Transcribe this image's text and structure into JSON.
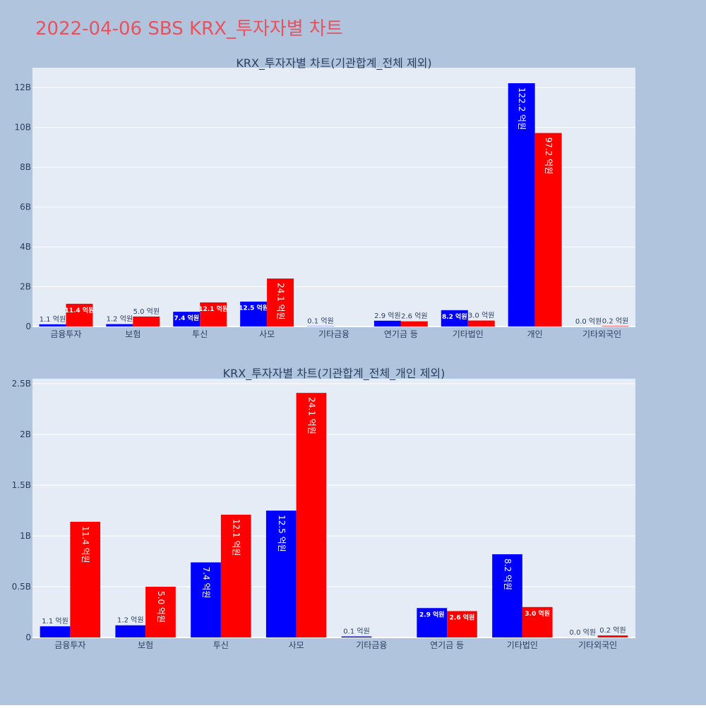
{
  "page_title": "2022-04-06 SBS KRX_투자자별 차트",
  "colors": {
    "background": "#b0c4de",
    "plot_bg": "#e5ecf6",
    "buy": "#0000ff",
    "sell": "#ff0000",
    "title": "#e8525f",
    "axis_text": "#2a3f5f"
  },
  "chart_data": [
    {
      "type": "bar",
      "title": "KRX_투자자별 차트(기관합계_전체 제외)",
      "categories": [
        "금융투자",
        "보험",
        "투신",
        "사모",
        "기타금융",
        "연기금 등",
        "기타법인",
        "개인",
        "기타외국인"
      ],
      "ylim": [
        0,
        13000000000
      ],
      "yticks": [
        0,
        2000000000,
        4000000000,
        6000000000,
        8000000000,
        10000000000,
        12000000000
      ],
      "ytick_labels": [
        "0",
        "2B",
        "4B",
        "6B",
        "8B",
        "10B",
        "12B"
      ],
      "series": [
        {
          "color": "#0000ff",
          "values": [
            110000000,
            120000000,
            740000000,
            1250000000,
            10000000,
            290000000,
            820000000,
            12220000000,
            0
          ],
          "labels": [
            "1.1 억원",
            "1.2 억원",
            "7.4 억원",
            "12.5 억원",
            "0.1 억원",
            "2.9 억원",
            "8.2 억원",
            "122.2 억원",
            "0.0 억원"
          ]
        },
        {
          "color": "#ff0000",
          "values": [
            1140000000,
            500000000,
            1210000000,
            2410000000,
            0,
            260000000,
            300000000,
            9720000000,
            20000000
          ],
          "labels": [
            "11.4 억원",
            "5.0 억원",
            "12.1 억원",
            "24.1 억원",
            "",
            "2.6 억원",
            "3.0 억원",
            "97.2 억원",
            "0.2 억원"
          ]
        }
      ]
    },
    {
      "type": "bar",
      "title": "KRX_투자자별 차트(기관합계_전체_개인 제외)",
      "categories": [
        "금융투자",
        "보험",
        "투신",
        "사모",
        "기타금융",
        "연기금 등",
        "기타법인",
        "기타외국인"
      ],
      "ylim": [
        0,
        2550000000
      ],
      "yticks": [
        0,
        500000000,
        1000000000,
        1500000000,
        2000000000,
        2500000000
      ],
      "ytick_labels": [
        "0",
        "0.5B",
        "1B",
        "1.5B",
        "2B",
        "2.5B"
      ],
      "series": [
        {
          "color": "#0000ff",
          "values": [
            110000000,
            120000000,
            740000000,
            1250000000,
            10000000,
            290000000,
            820000000,
            0
          ],
          "labels": [
            "1.1 억원",
            "1.2 억원",
            "7.4 억원",
            "12.5 억원",
            "0.1 억원",
            "2.9 억원",
            "8.2 억원",
            "0.0 억원"
          ]
        },
        {
          "color": "#ff0000",
          "values": [
            1140000000,
            500000000,
            1210000000,
            2410000000,
            0,
            260000000,
            300000000,
            20000000
          ],
          "labels": [
            "11.4 억원",
            "5.0 억원",
            "12.1 억원",
            "24.1 억원",
            "",
            "2.6 억원",
            "3.0 억원",
            "0.2 억원"
          ]
        }
      ]
    }
  ]
}
